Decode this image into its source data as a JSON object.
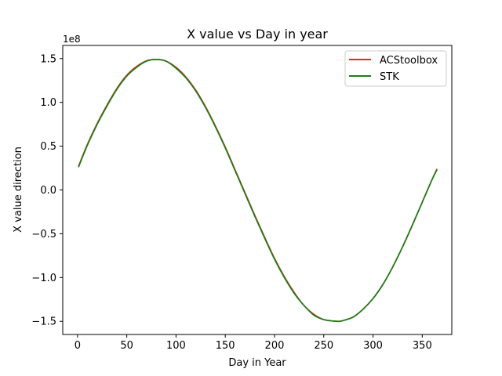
{
  "chart_data": {
    "type": "line",
    "title": "X value vs Day in year",
    "xlabel": "Day in Year",
    "ylabel": "X value direction",
    "y_offset_label": "1e8",
    "xlim": [
      -15,
      380
    ],
    "ylim": [
      -1.65,
      1.65
    ],
    "x_ticks": [
      0,
      50,
      100,
      150,
      200,
      250,
      300,
      350
    ],
    "x_tick_labels": [
      "0",
      "50",
      "100",
      "150",
      "200",
      "250",
      "300",
      "350"
    ],
    "y_ticks": [
      -1.5,
      -1.0,
      -0.5,
      0.0,
      0.5,
      1.0,
      1.5
    ],
    "y_tick_labels": [
      "−1.5",
      "−1.0",
      "−0.5",
      "0.0",
      "0.5",
      "1.0",
      "1.5"
    ],
    "grid": false,
    "legend_position": "top-right",
    "series": [
      {
        "name": "ACStoolbox",
        "color": "#e8281e",
        "x": [
          1,
          10,
          20,
          30,
          40,
          50,
          60,
          70,
          80,
          90,
          100,
          110,
          120,
          130,
          140,
          150,
          160,
          170,
          180,
          190,
          200,
          210,
          220,
          230,
          240,
          250,
          260,
          266,
          270,
          280,
          290,
          300,
          310,
          320,
          330,
          340,
          350,
          360,
          365
        ],
        "y": [
          0.27,
          0.52,
          0.76,
          0.97,
          1.16,
          1.31,
          1.41,
          1.474,
          1.49,
          1.47,
          1.4,
          1.29,
          1.14,
          0.95,
          0.73,
          0.49,
          0.23,
          -0.03,
          -0.29,
          -0.54,
          -0.78,
          -0.99,
          -1.17,
          -1.32,
          -1.42,
          -1.48,
          -1.497,
          -1.5,
          -1.49,
          -1.45,
          -1.36,
          -1.24,
          -1.08,
          -0.88,
          -0.65,
          -0.4,
          -0.14,
          0.12,
          0.24
        ]
      },
      {
        "name": "STK",
        "color": "#1a7f1a",
        "x": [
          1,
          10,
          20,
          30,
          40,
          50,
          60,
          70,
          80,
          90,
          100,
          110,
          120,
          130,
          140,
          150,
          160,
          170,
          180,
          190,
          200,
          210,
          220,
          230,
          240,
          250,
          260,
          266,
          270,
          280,
          290,
          300,
          310,
          320,
          330,
          340,
          350,
          360,
          365
        ],
        "y": [
          0.26,
          0.51,
          0.75,
          0.96,
          1.15,
          1.3,
          1.4,
          1.47,
          1.49,
          1.47,
          1.39,
          1.28,
          1.13,
          0.94,
          0.72,
          0.48,
          0.22,
          -0.04,
          -0.3,
          -0.55,
          -0.79,
          -1.0,
          -1.18,
          -1.32,
          -1.43,
          -1.48,
          -1.497,
          -1.5,
          -1.49,
          -1.45,
          -1.36,
          -1.24,
          -1.08,
          -0.88,
          -0.65,
          -0.4,
          -0.14,
          0.12,
          0.23
        ]
      }
    ]
  }
}
